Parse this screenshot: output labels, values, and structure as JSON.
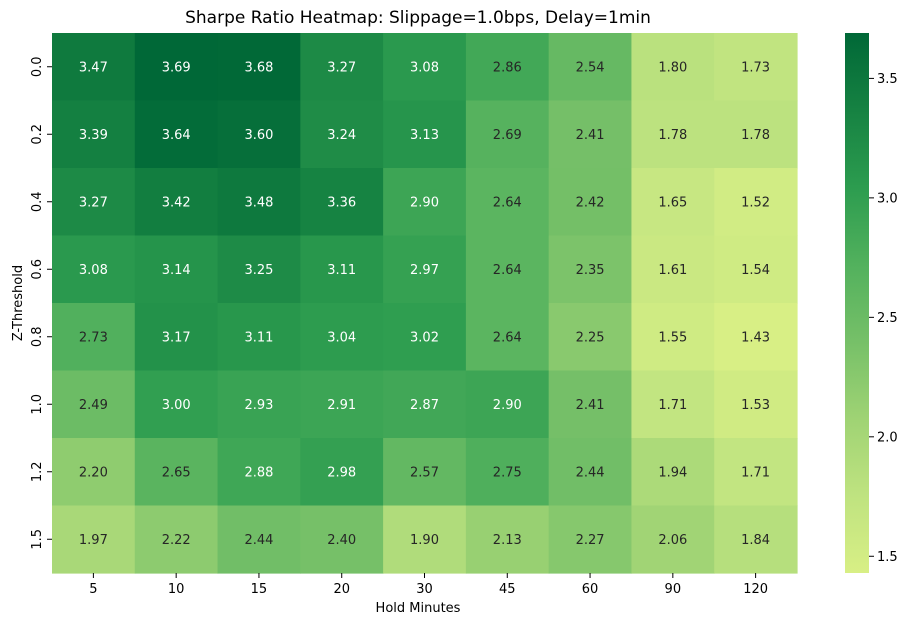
{
  "chart_data": {
    "type": "heatmap",
    "title": "Sharpe Ratio Heatmap: Slippage=1.0bps, Delay=1min",
    "xlabel": "Hold Minutes",
    "ylabel": "Z-Threshold",
    "x_categories": [
      "5",
      "10",
      "15",
      "20",
      "30",
      "45",
      "60",
      "90",
      "120"
    ],
    "y_categories": [
      "0.0",
      "0.2",
      "0.4",
      "0.6",
      "0.8",
      "1.0",
      "1.2",
      "1.5"
    ],
    "values": [
      [
        3.47,
        3.69,
        3.68,
        3.27,
        3.08,
        2.86,
        2.54,
        1.8,
        1.73
      ],
      [
        3.39,
        3.64,
        3.6,
        3.24,
        3.13,
        2.69,
        2.41,
        1.78,
        1.78
      ],
      [
        3.27,
        3.42,
        3.48,
        3.36,
        2.9,
        2.64,
        2.42,
        1.65,
        1.52
      ],
      [
        3.08,
        3.14,
        3.25,
        3.11,
        2.97,
        2.64,
        2.35,
        1.61,
        1.54
      ],
      [
        2.73,
        3.17,
        3.11,
        3.04,
        3.02,
        2.64,
        2.25,
        1.55,
        1.43
      ],
      [
        2.49,
        3.0,
        2.93,
        2.91,
        2.87,
        2.9,
        2.41,
        1.71,
        1.53
      ],
      [
        2.2,
        2.65,
        2.88,
        2.98,
        2.57,
        2.75,
        2.44,
        1.94,
        1.71
      ],
      [
        1.97,
        2.22,
        2.44,
        2.4,
        1.9,
        2.13,
        2.27,
        2.06,
        1.84
      ]
    ],
    "value_labels": [
      [
        "3.47",
        "3.69",
        "3.68",
        "3.27",
        "3.08",
        "2.86",
        "2.54",
        "1.80",
        "1.73"
      ],
      [
        "3.39",
        "3.64",
        "3.60",
        "3.24",
        "3.13",
        "2.69",
        "2.41",
        "1.78",
        "1.78"
      ],
      [
        "3.27",
        "3.42",
        "3.48",
        "3.36",
        "2.90",
        "2.64",
        "2.42",
        "1.65",
        "1.52"
      ],
      [
        "3.08",
        "3.14",
        "3.25",
        "3.11",
        "2.97",
        "2.64",
        "2.35",
        "1.61",
        "1.54"
      ],
      [
        "2.73",
        "3.17",
        "3.11",
        "3.04",
        "3.02",
        "2.64",
        "2.25",
        "1.55",
        "1.43"
      ],
      [
        "2.49",
        "3.00",
        "2.93",
        "2.91",
        "2.87",
        "2.90",
        "2.41",
        "1.71",
        "1.53"
      ],
      [
        "2.20",
        "2.65",
        "2.88",
        "2.98",
        "2.57",
        "2.75",
        "2.44",
        "1.94",
        "1.71"
      ],
      [
        "1.97",
        "2.22",
        "2.44",
        "2.40",
        "1.90",
        "2.13",
        "2.27",
        "2.06",
        "1.84"
      ]
    ],
    "colorbar": {
      "vmin": 1.43,
      "vmax": 3.69,
      "ticks": [
        1.5,
        2.0,
        2.5,
        3.0,
        3.5
      ],
      "tick_labels": [
        "1.5",
        "2.0",
        "2.5",
        "3.0",
        "3.5"
      ],
      "colormap": "YlGn",
      "colormap_stops": [
        "#d8ef85",
        "#bfe380",
        "#9fd374",
        "#76c068",
        "#52b15d",
        "#2c9c4f",
        "#168242",
        "#006837"
      ]
    },
    "annotation_colors": {
      "dark": "#262626",
      "light": "#ffffff"
    },
    "legend": "colorbar-right",
    "grid": false
  }
}
